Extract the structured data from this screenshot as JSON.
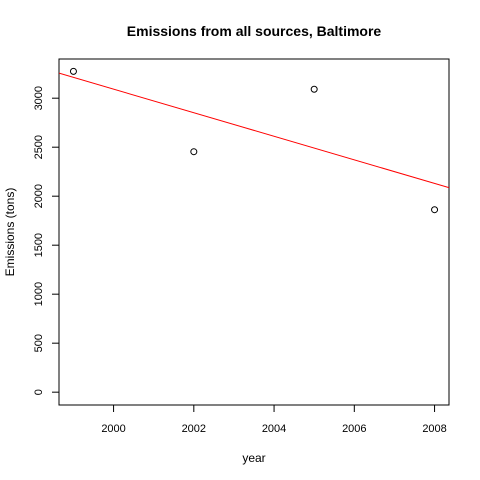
{
  "chart_data": {
    "type": "scatter",
    "title": "Emissions from all sources, Baltimore",
    "xlabel": "year",
    "ylabel": "Emissions (tons)",
    "x": [
      1999,
      2002,
      2005,
      2008
    ],
    "y": [
      3274,
      2454,
      3091,
      1862
    ],
    "xlim": [
      1998.64,
      2008.36
    ],
    "ylim": [
      -130.9,
      3400
    ],
    "xticks": [
      2000,
      2002,
      2004,
      2006,
      2008
    ],
    "yticks": [
      0,
      500,
      1000,
      1500,
      2000,
      2500,
      3000
    ],
    "grid": false,
    "trend_line": {
      "x": [
        1998.64,
        2008.36
      ],
      "y": [
        3256,
        2087
      ]
    },
    "colors": {
      "points": "#000000",
      "trend_line": "#ff0000",
      "axes": "#000000"
    }
  }
}
